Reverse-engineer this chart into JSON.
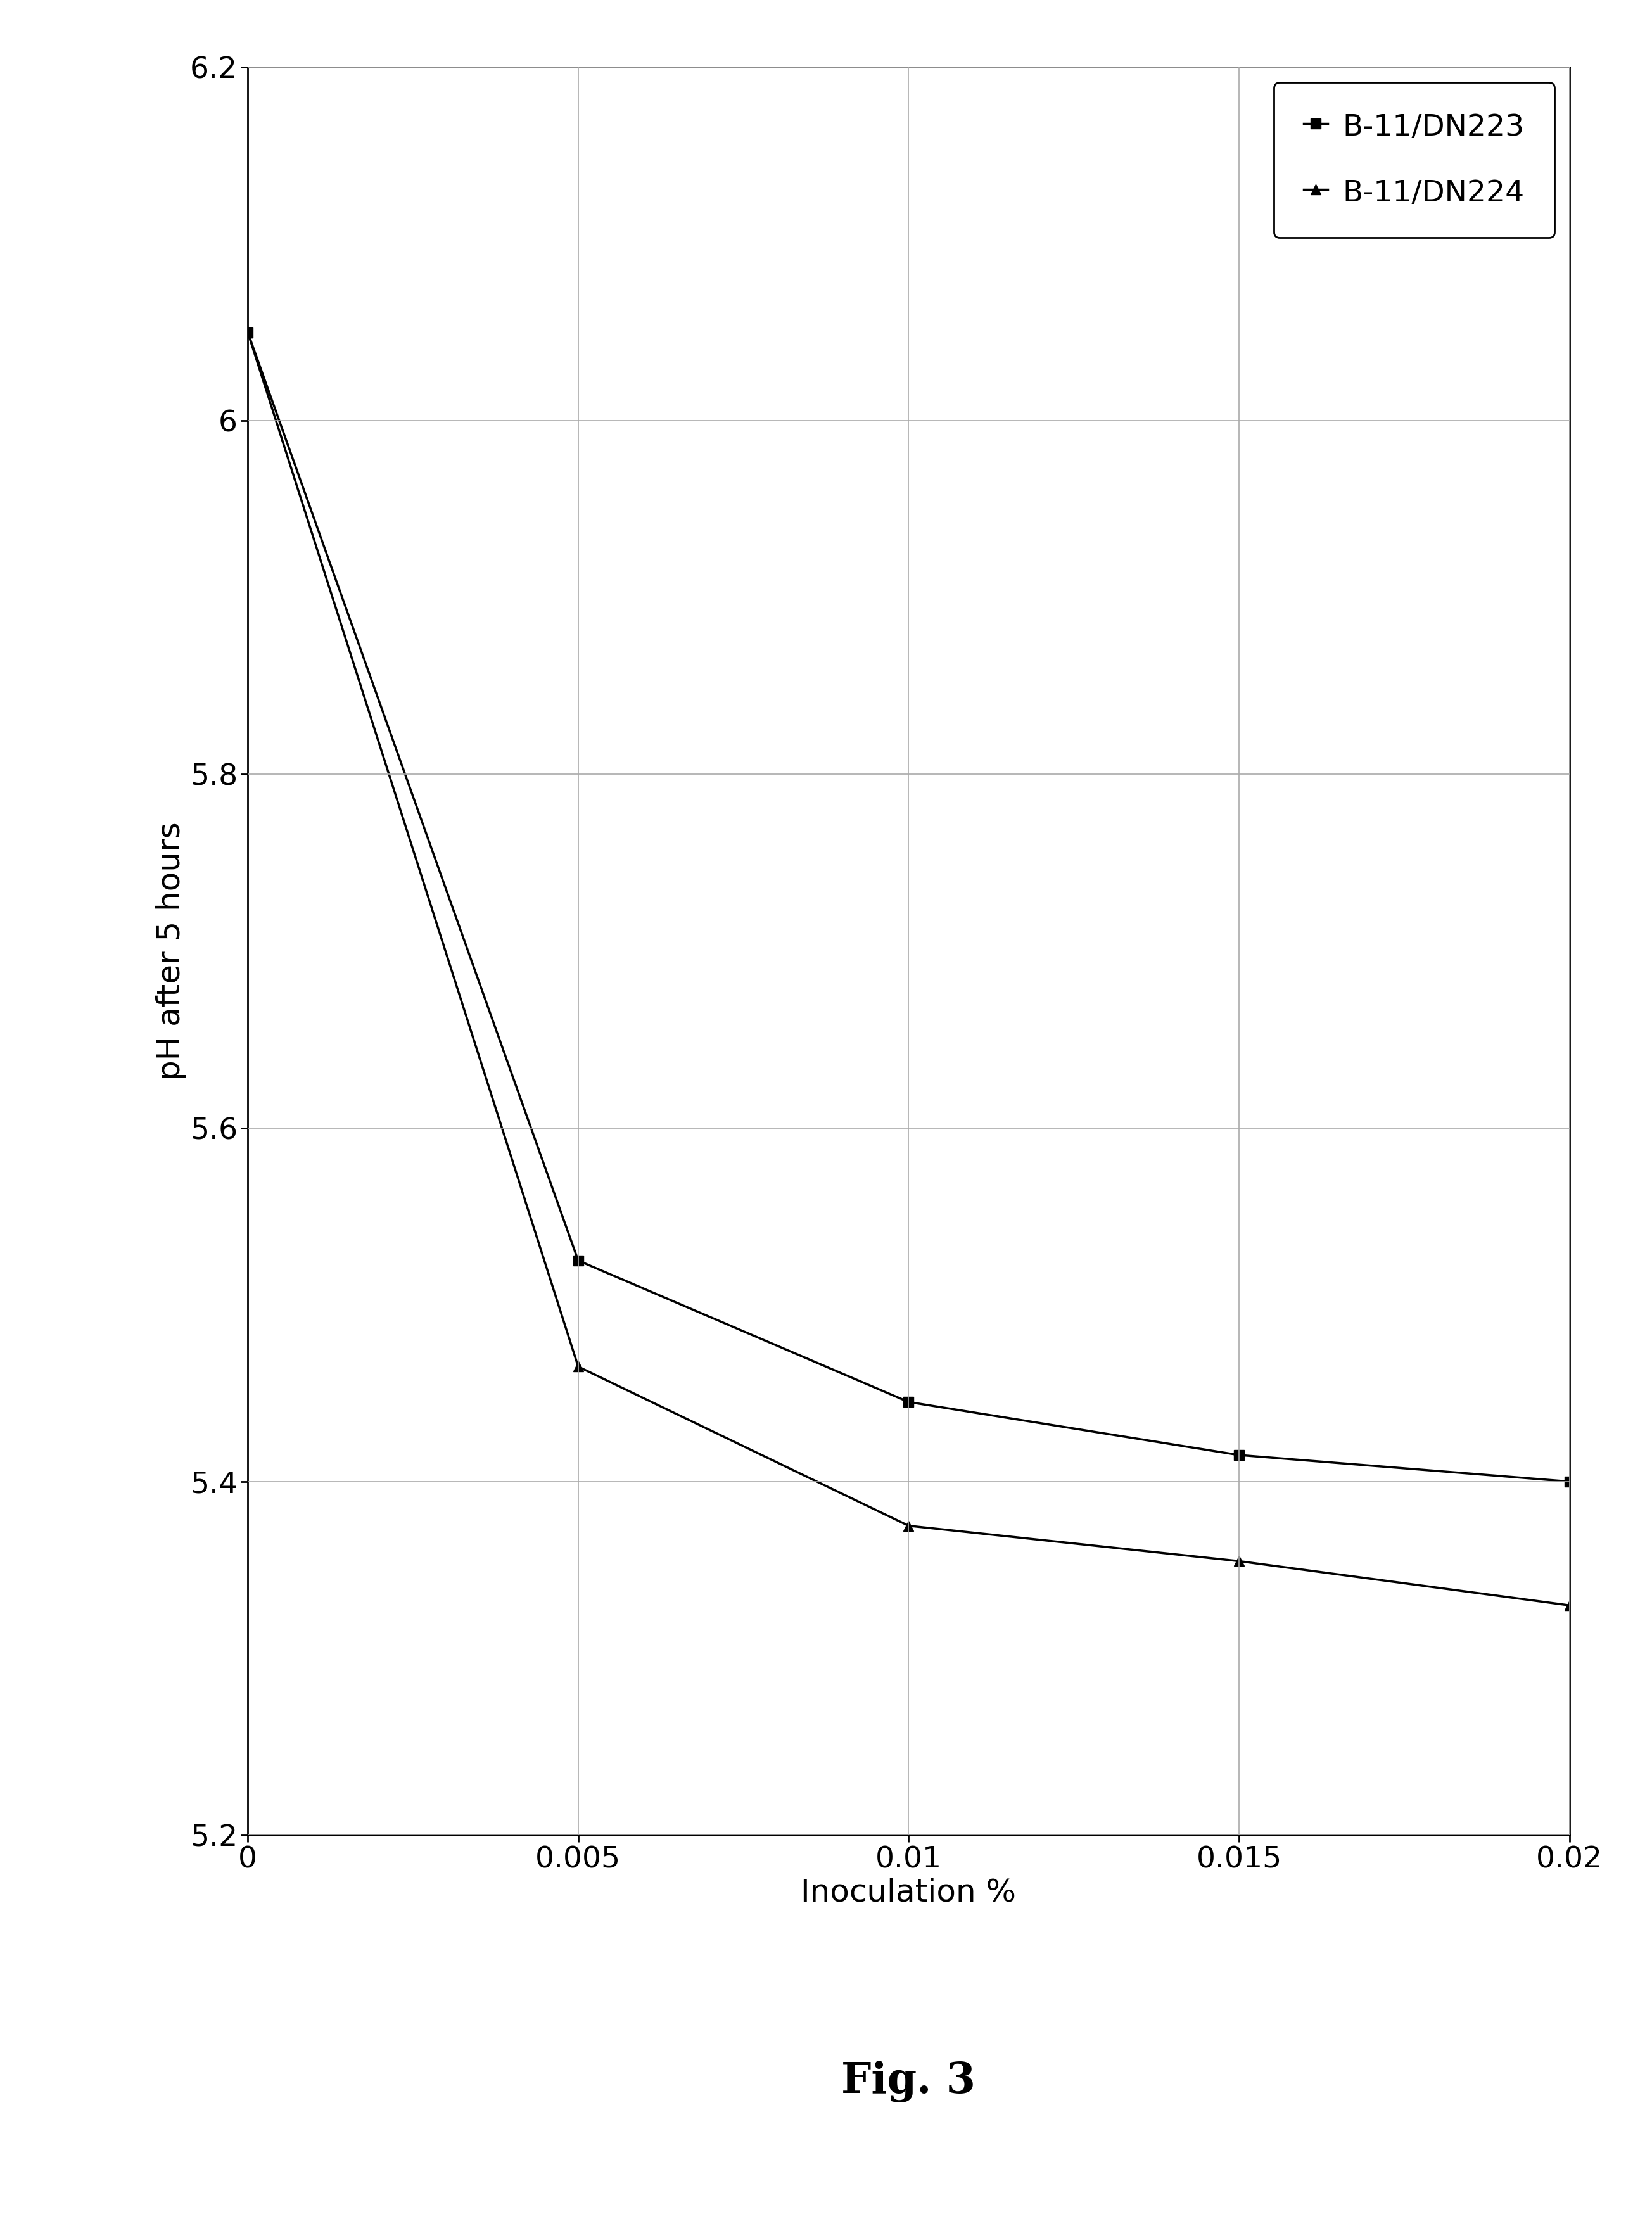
{
  "series": [
    {
      "label": "B-11/DN223",
      "x": [
        0,
        0.005,
        0.01,
        0.015,
        0.02
      ],
      "y": [
        6.05,
        5.525,
        5.445,
        5.415,
        5.4
      ],
      "marker": "s",
      "color": "#000000",
      "linewidth": 2.5,
      "markersize": 12
    },
    {
      "label": "B-11/DN224",
      "x": [
        0,
        0.005,
        0.01,
        0.015,
        0.02
      ],
      "y": [
        6.05,
        5.465,
        5.375,
        5.355,
        5.33
      ],
      "marker": "^",
      "color": "#000000",
      "linewidth": 2.5,
      "markersize": 12
    }
  ],
  "xlabel": "Inoculation %",
  "ylabel": "pH after 5 hours",
  "ylim": [
    5.2,
    6.2
  ],
  "xlim": [
    0,
    0.02
  ],
  "xticks": [
    0,
    0.005,
    0.01,
    0.015,
    0.02
  ],
  "yticks": [
    5.2,
    5.4,
    5.6,
    5.8,
    6.0,
    6.2
  ],
  "grid": true,
  "figure_caption": "Fig. 3",
  "background_color": "#ffffff",
  "label_fontsize": 36,
  "tick_fontsize": 34,
  "legend_fontsize": 34,
  "caption_fontsize": 48,
  "legend_labelspacing": 1.2,
  "legend_borderpad": 1.0
}
